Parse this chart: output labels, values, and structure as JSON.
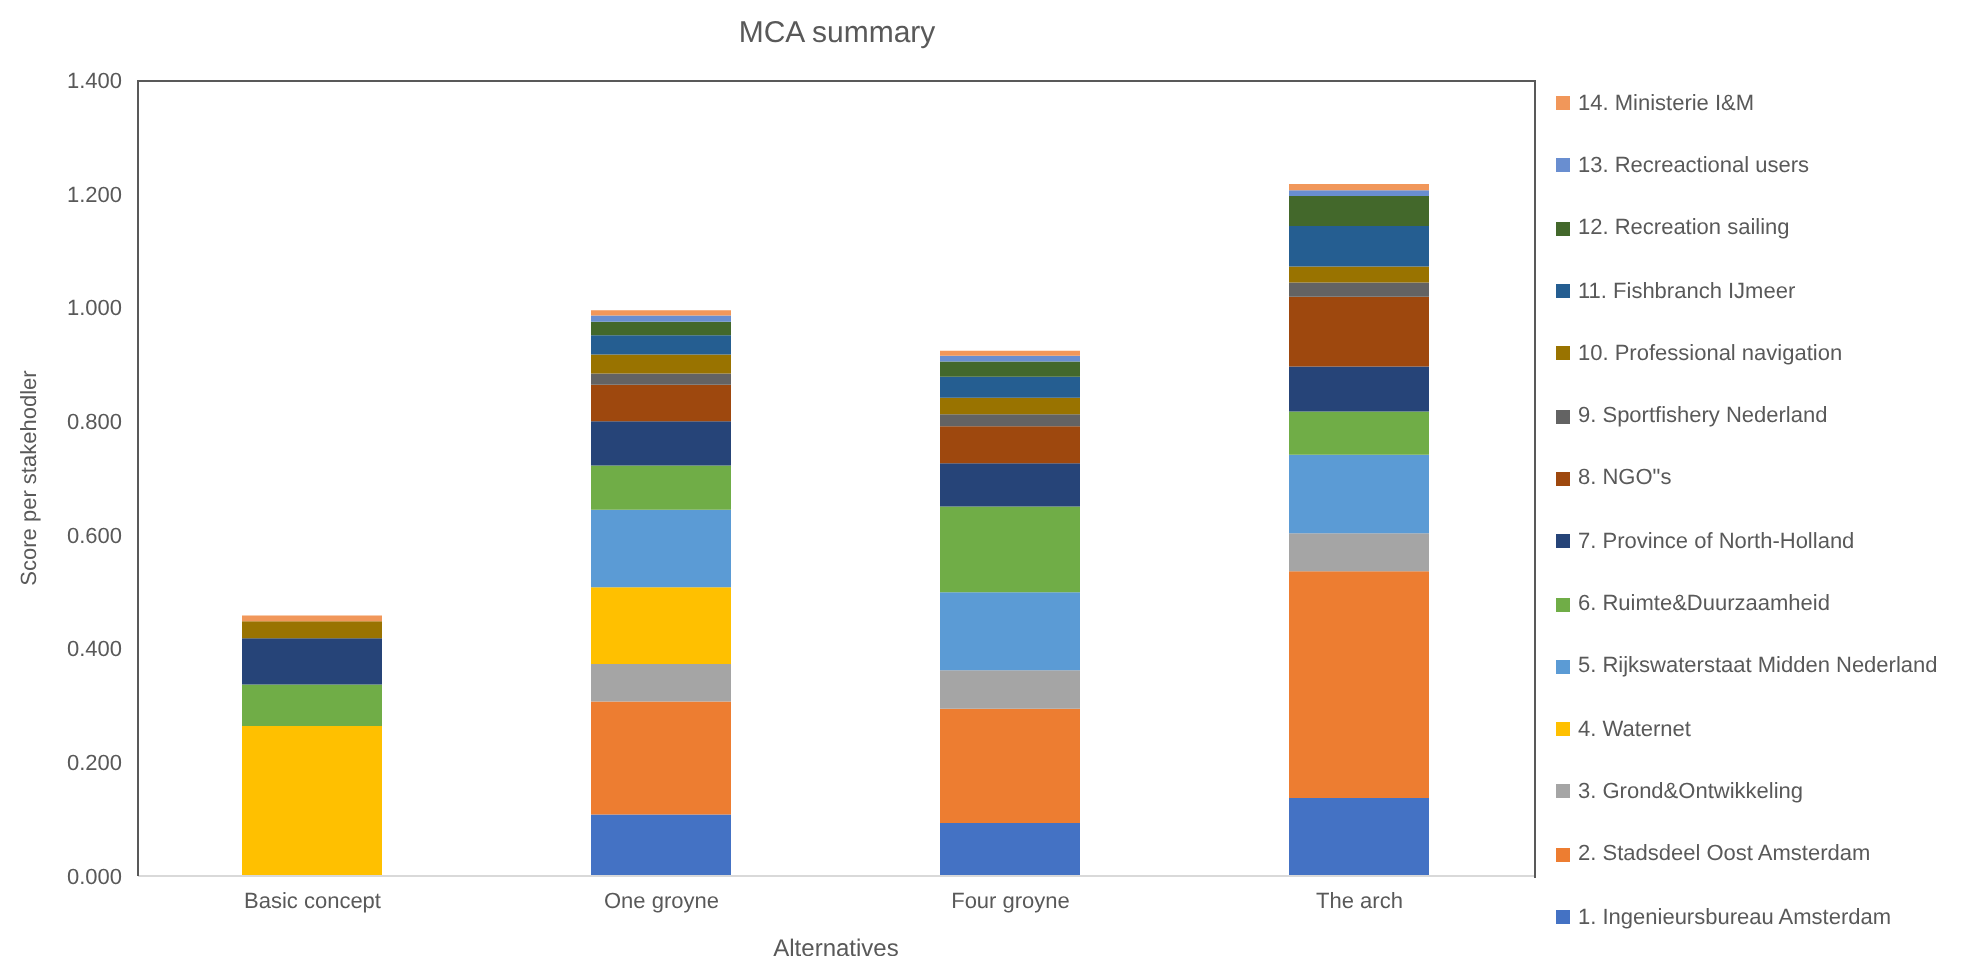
{
  "chart_data": {
    "type": "bar",
    "stacked": true,
    "title": "MCA summary",
    "xlabel": "Alternatives",
    "ylabel": "Score per stakehodler",
    "categories": [
      "Basic concept",
      "One groyne",
      "Four groyne",
      "The arch"
    ],
    "ylim": [
      0,
      1.4
    ],
    "yticks": [
      {
        "value": 0,
        "label": "0.000"
      },
      {
        "value": 0.2,
        "label": "0.200"
      },
      {
        "value": 0.4,
        "label": "0.400"
      },
      {
        "value": 0.6,
        "label": "0.600"
      },
      {
        "value": 0.8,
        "label": "0.800"
      },
      {
        "value": 1,
        "label": "1.000"
      },
      {
        "value": 1.2,
        "label": "1.200"
      },
      {
        "value": 1.4,
        "label": "1.400"
      }
    ],
    "grid": false,
    "legend": "right",
    "series": [
      {
        "name": "1. Ingenieursbureau Amsterdam",
        "color": "#4472c4",
        "values": [
          0,
          0.108,
          0.093,
          0.137
        ]
      },
      {
        "name": "2. Stadsdeel Oost Amsterdam",
        "color": "#ed7d31",
        "values": [
          0,
          0.199,
          0.201,
          0.399
        ]
      },
      {
        "name": "3. Grond&Ontwikkeling",
        "color": "#a5a5a5",
        "values": [
          0,
          0.066,
          0.068,
          0.067
        ]
      },
      {
        "name": "4. Waternet",
        "color": "#ffc000",
        "values": [
          0.264,
          0.135,
          0,
          0
        ]
      },
      {
        "name": "5. Rijkswaterstaat Midden Nederland",
        "color": "#5b9bd5",
        "values": [
          0,
          0.136,
          0.137,
          0.138
        ]
      },
      {
        "name": "6. Ruimte&Duurzaamheid",
        "color": "#70ad47",
        "values": [
          0.073,
          0.078,
          0.151,
          0.076
        ]
      },
      {
        "name": "7. Province of North-Holland",
        "color": "#264478",
        "values": [
          0.081,
          0.078,
          0.076,
          0.079
        ]
      },
      {
        "name": "8. NGO\"s",
        "color": "#9e480e",
        "values": [
          0,
          0.064,
          0.065,
          0.123
        ]
      },
      {
        "name": "9. Sportfishery Nederland",
        "color": "#636363",
        "values": [
          0,
          0.02,
          0.021,
          0.025
        ]
      },
      {
        "name": "10. Professional navigation",
        "color": "#997300",
        "values": [
          0.03,
          0.033,
          0.029,
          0.028
        ]
      },
      {
        "name": "11. Fishbranch IJmeer",
        "color": "#255e91",
        "values": [
          0,
          0.034,
          0.037,
          0.071
        ]
      },
      {
        "name": "12. Recreation sailing",
        "color": "#43682b",
        "values": [
          0,
          0.024,
          0.027,
          0.053
        ]
      },
      {
        "name": "13. Recreactional users",
        "color": "#698ed0",
        "values": [
          0,
          0.011,
          0.01,
          0.01
        ]
      },
      {
        "name": "14. Ministerie I&M",
        "color": "#f1975a",
        "values": [
          0.01,
          0.009,
          0.009,
          0.011
        ]
      }
    ]
  }
}
